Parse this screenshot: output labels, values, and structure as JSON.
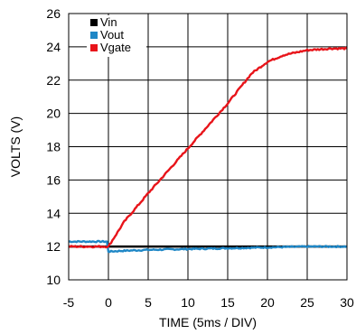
{
  "chart_data": {
    "type": "line",
    "xlabel": "TIME (5ms / DIV)",
    "ylabel": "VOLTS (V)",
    "xlim": [
      -5,
      30
    ],
    "ylim": [
      10,
      26
    ],
    "xticks": [
      -5,
      0,
      5,
      10,
      15,
      20,
      25,
      30
    ],
    "yticks": [
      10,
      12,
      14,
      16,
      18,
      20,
      22,
      24,
      26
    ],
    "grid": true,
    "legend": "top-left",
    "series": [
      {
        "name": "Vin",
        "color": "#000000",
        "x": [
          -5,
          0,
          5,
          10,
          15,
          20,
          25,
          30
        ],
        "y": [
          12.0,
          12.0,
          12.0,
          12.0,
          12.0,
          12.0,
          12.0,
          12.0
        ]
      },
      {
        "name": "Vout",
        "color": "#1f87c6",
        "x": [
          -5,
          -0.2,
          0,
          2,
          5,
          10,
          15,
          20,
          25,
          30
        ],
        "y": [
          12.3,
          12.3,
          11.7,
          11.75,
          11.8,
          11.85,
          11.9,
          11.95,
          12.0,
          12.0
        ],
        "noise": 0.04
      },
      {
        "name": "Vgate",
        "color": "#e8141a",
        "x": [
          -5,
          0,
          2,
          5,
          10,
          15,
          18,
          20,
          22,
          25,
          28,
          30
        ],
        "y": [
          12.0,
          12.0,
          13.5,
          15.2,
          17.9,
          20.6,
          22.4,
          23.1,
          23.5,
          23.8,
          23.9,
          23.9
        ],
        "noise": 0.05
      }
    ]
  }
}
